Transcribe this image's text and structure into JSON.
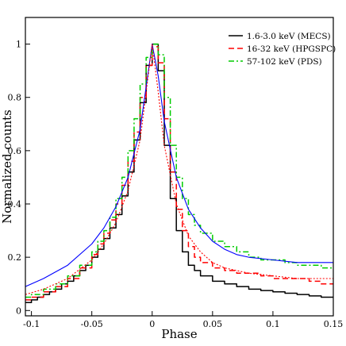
{
  "chart_data": {
    "type": "line",
    "xlabel": "Phase",
    "ylabel": "Normalized counts",
    "xlim": [
      -0.105,
      0.15
    ],
    "ylim": [
      -0.02,
      1.1
    ],
    "x_ticks": [
      {
        "value": -0.1,
        "label": "-0.1"
      },
      {
        "value": -0.05,
        "label": "-0.05"
      },
      {
        "value": 0,
        "label": "0"
      },
      {
        "value": 0.05,
        "label": "0.05"
      },
      {
        "value": 0.1,
        "label": "0.1"
      },
      {
        "value": 0.15,
        "label": "0.15"
      }
    ],
    "y_ticks": [
      {
        "value": 0,
        "label": "0"
      },
      {
        "value": 0.2,
        "label": "0.2"
      },
      {
        "value": 0.4,
        "label": "0.4"
      },
      {
        "value": 0.6,
        "label": "0.6"
      },
      {
        "value": 0.8,
        "label": "0.8"
      },
      {
        "value": 1,
        "label": "1"
      }
    ],
    "grid": false,
    "legend_position": "top-right",
    "series": [
      {
        "name": "1.6-3.0 keV  (MECS)",
        "style": "step",
        "color": "#000000",
        "dash": "solid",
        "x": [
          -0.105,
          -0.1,
          -0.095,
          -0.09,
          -0.085,
          -0.08,
          -0.075,
          -0.07,
          -0.065,
          -0.06,
          -0.055,
          -0.05,
          -0.045,
          -0.04,
          -0.035,
          -0.03,
          -0.025,
          -0.02,
          -0.015,
          -0.01,
          -0.005,
          0,
          0.005,
          0.01,
          0.015,
          0.02,
          0.025,
          0.03,
          0.035,
          0.04,
          0.05,
          0.06,
          0.07,
          0.08,
          0.09,
          0.1,
          0.11,
          0.12,
          0.13,
          0.14,
          0.15
        ],
        "y": [
          0.03,
          0.04,
          0.05,
          0.06,
          0.07,
          0.08,
          0.1,
          0.11,
          0.13,
          0.15,
          0.17,
          0.2,
          0.23,
          0.27,
          0.31,
          0.36,
          0.43,
          0.52,
          0.64,
          0.78,
          0.92,
          1.0,
          0.9,
          0.62,
          0.42,
          0.3,
          0.22,
          0.17,
          0.15,
          0.13,
          0.11,
          0.1,
          0.09,
          0.08,
          0.075,
          0.07,
          0.065,
          0.06,
          0.055,
          0.05,
          0.05
        ]
      },
      {
        "name": "16-32 keV  (HPGSPC)",
        "style": "step",
        "color": "#ff0000",
        "dash": "dashed",
        "x": [
          -0.105,
          -0.1,
          -0.09,
          -0.08,
          -0.07,
          -0.06,
          -0.05,
          -0.045,
          -0.04,
          -0.035,
          -0.03,
          -0.025,
          -0.02,
          -0.015,
          -0.01,
          -0.005,
          0,
          0.005,
          0.01,
          0.015,
          0.02,
          0.025,
          0.03,
          0.035,
          0.04,
          0.05,
          0.06,
          0.07,
          0.08,
          0.09,
          0.1,
          0.11,
          0.12,
          0.13,
          0.14,
          0.15
        ],
        "y": [
          0.04,
          0.05,
          0.07,
          0.09,
          0.12,
          0.16,
          0.21,
          0.25,
          0.29,
          0.34,
          0.4,
          0.47,
          0.56,
          0.67,
          0.8,
          0.92,
          0.99,
          0.93,
          0.72,
          0.52,
          0.38,
          0.3,
          0.24,
          0.2,
          0.18,
          0.16,
          0.15,
          0.14,
          0.14,
          0.13,
          0.12,
          0.12,
          0.12,
          0.11,
          0.1,
          0.1
        ]
      },
      {
        "name": "57-102 keV (PDS)",
        "style": "step",
        "color": "#00cc00",
        "dash": "dashdot",
        "x": [
          -0.105,
          -0.1,
          -0.09,
          -0.08,
          -0.07,
          -0.06,
          -0.05,
          -0.045,
          -0.04,
          -0.035,
          -0.03,
          -0.025,
          -0.02,
          -0.015,
          -0.01,
          -0.005,
          0,
          0.005,
          0.01,
          0.015,
          0.02,
          0.025,
          0.03,
          0.035,
          0.04,
          0.05,
          0.06,
          0.07,
          0.08,
          0.09,
          0.1,
          0.11,
          0.12,
          0.13,
          0.14,
          0.15
        ],
        "y": [
          0.05,
          0.06,
          0.08,
          0.1,
          0.13,
          0.17,
          0.22,
          0.26,
          0.3,
          0.35,
          0.42,
          0.5,
          0.6,
          0.72,
          0.85,
          0.95,
          1.0,
          0.96,
          0.8,
          0.62,
          0.5,
          0.42,
          0.36,
          0.32,
          0.29,
          0.26,
          0.24,
          0.22,
          0.2,
          0.19,
          0.19,
          0.18,
          0.17,
          0.17,
          0.16,
          0.16
        ]
      },
      {
        "name": "",
        "style": "smooth",
        "color": "#0000ff",
        "dash": "solid",
        "x": [
          -0.105,
          -0.09,
          -0.07,
          -0.05,
          -0.04,
          -0.03,
          -0.02,
          -0.01,
          -0.005,
          0,
          0.005,
          0.01,
          0.02,
          0.03,
          0.04,
          0.05,
          0.06,
          0.07,
          0.08,
          0.1,
          0.12,
          0.15
        ],
        "y": [
          0.09,
          0.12,
          0.17,
          0.25,
          0.31,
          0.39,
          0.5,
          0.68,
          0.84,
          1.0,
          0.88,
          0.71,
          0.5,
          0.38,
          0.31,
          0.26,
          0.23,
          0.21,
          0.2,
          0.19,
          0.18,
          0.18
        ]
      },
      {
        "name": "",
        "style": "smooth",
        "color": "#ff0000",
        "dash": "dotted",
        "x": [
          -0.105,
          -0.09,
          -0.07,
          -0.05,
          -0.04,
          -0.03,
          -0.02,
          -0.01,
          -0.005,
          0,
          0.005,
          0.01,
          0.02,
          0.03,
          0.04,
          0.05,
          0.06,
          0.07,
          0.08,
          0.1,
          0.12,
          0.15
        ],
        "y": [
          0.06,
          0.08,
          0.12,
          0.19,
          0.25,
          0.33,
          0.45,
          0.64,
          0.82,
          1.0,
          0.82,
          0.62,
          0.4,
          0.28,
          0.22,
          0.18,
          0.16,
          0.15,
          0.14,
          0.13,
          0.12,
          0.12
        ]
      }
    ]
  }
}
